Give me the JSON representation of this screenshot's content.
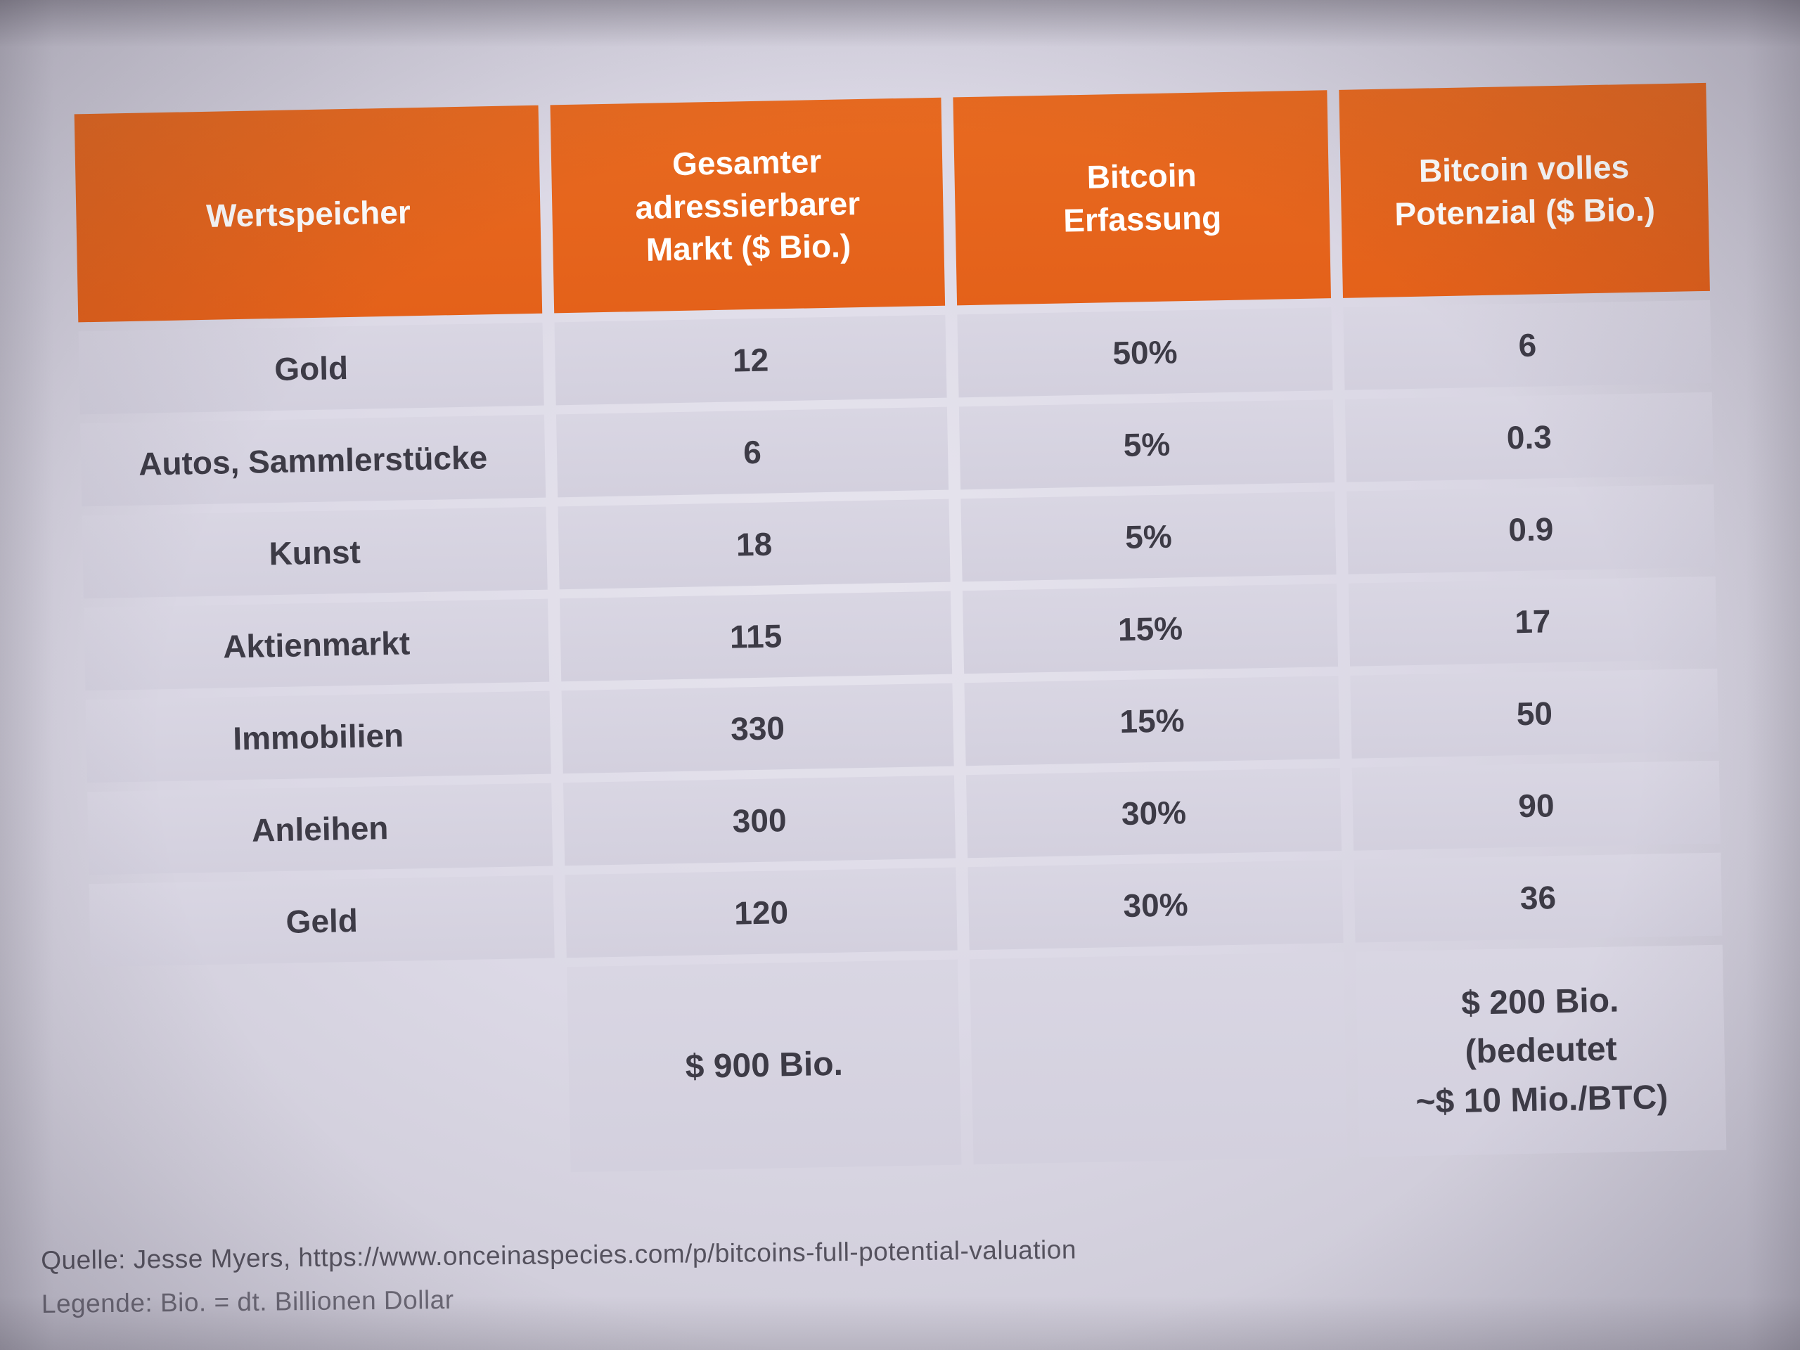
{
  "table": {
    "headers": [
      "Wertspeicher",
      "Gesamter\nadressierbarer\nMarkt ($ Bio.)",
      "Bitcoin\nErfassung",
      "Bitcoin volles\nPotenzial ($ Bio.)"
    ],
    "rows": [
      {
        "label": "Gold",
        "market": "12",
        "capture": "50%",
        "potential": "6"
      },
      {
        "label": "Autos, Sammlerstücke",
        "market": "6",
        "capture": "5%",
        "potential": "0.3"
      },
      {
        "label": "Kunst",
        "market": "18",
        "capture": "5%",
        "potential": "0.9"
      },
      {
        "label": "Aktienmarkt",
        "market": "115",
        "capture": "15%",
        "potential": "17"
      },
      {
        "label": "Immobilien",
        "market": "330",
        "capture": "15%",
        "potential": "50"
      },
      {
        "label": "Anleihen",
        "market": "300",
        "capture": "30%",
        "potential": "90"
      },
      {
        "label": "Geld",
        "market": "120",
        "capture": "30%",
        "potential": "36"
      }
    ],
    "totals": {
      "market": "$ 900 Bio.",
      "potential": "$ 200 Bio.\n(bedeutet\n~$ 10 Mio./BTC)"
    }
  },
  "footer": {
    "source": "Quelle: Jesse Myers, https://www.onceinaspecies.com/p/bitcoins-full-potential-valuation",
    "legend": "Legende: Bio. = dt. Billionen Dollar"
  },
  "colors": {
    "header_bg": "#e5661d",
    "header_text": "#ffffff",
    "row_bg": "#d6d3e0",
    "text": "#3d3b46",
    "paper": "#dcd9e6"
  }
}
